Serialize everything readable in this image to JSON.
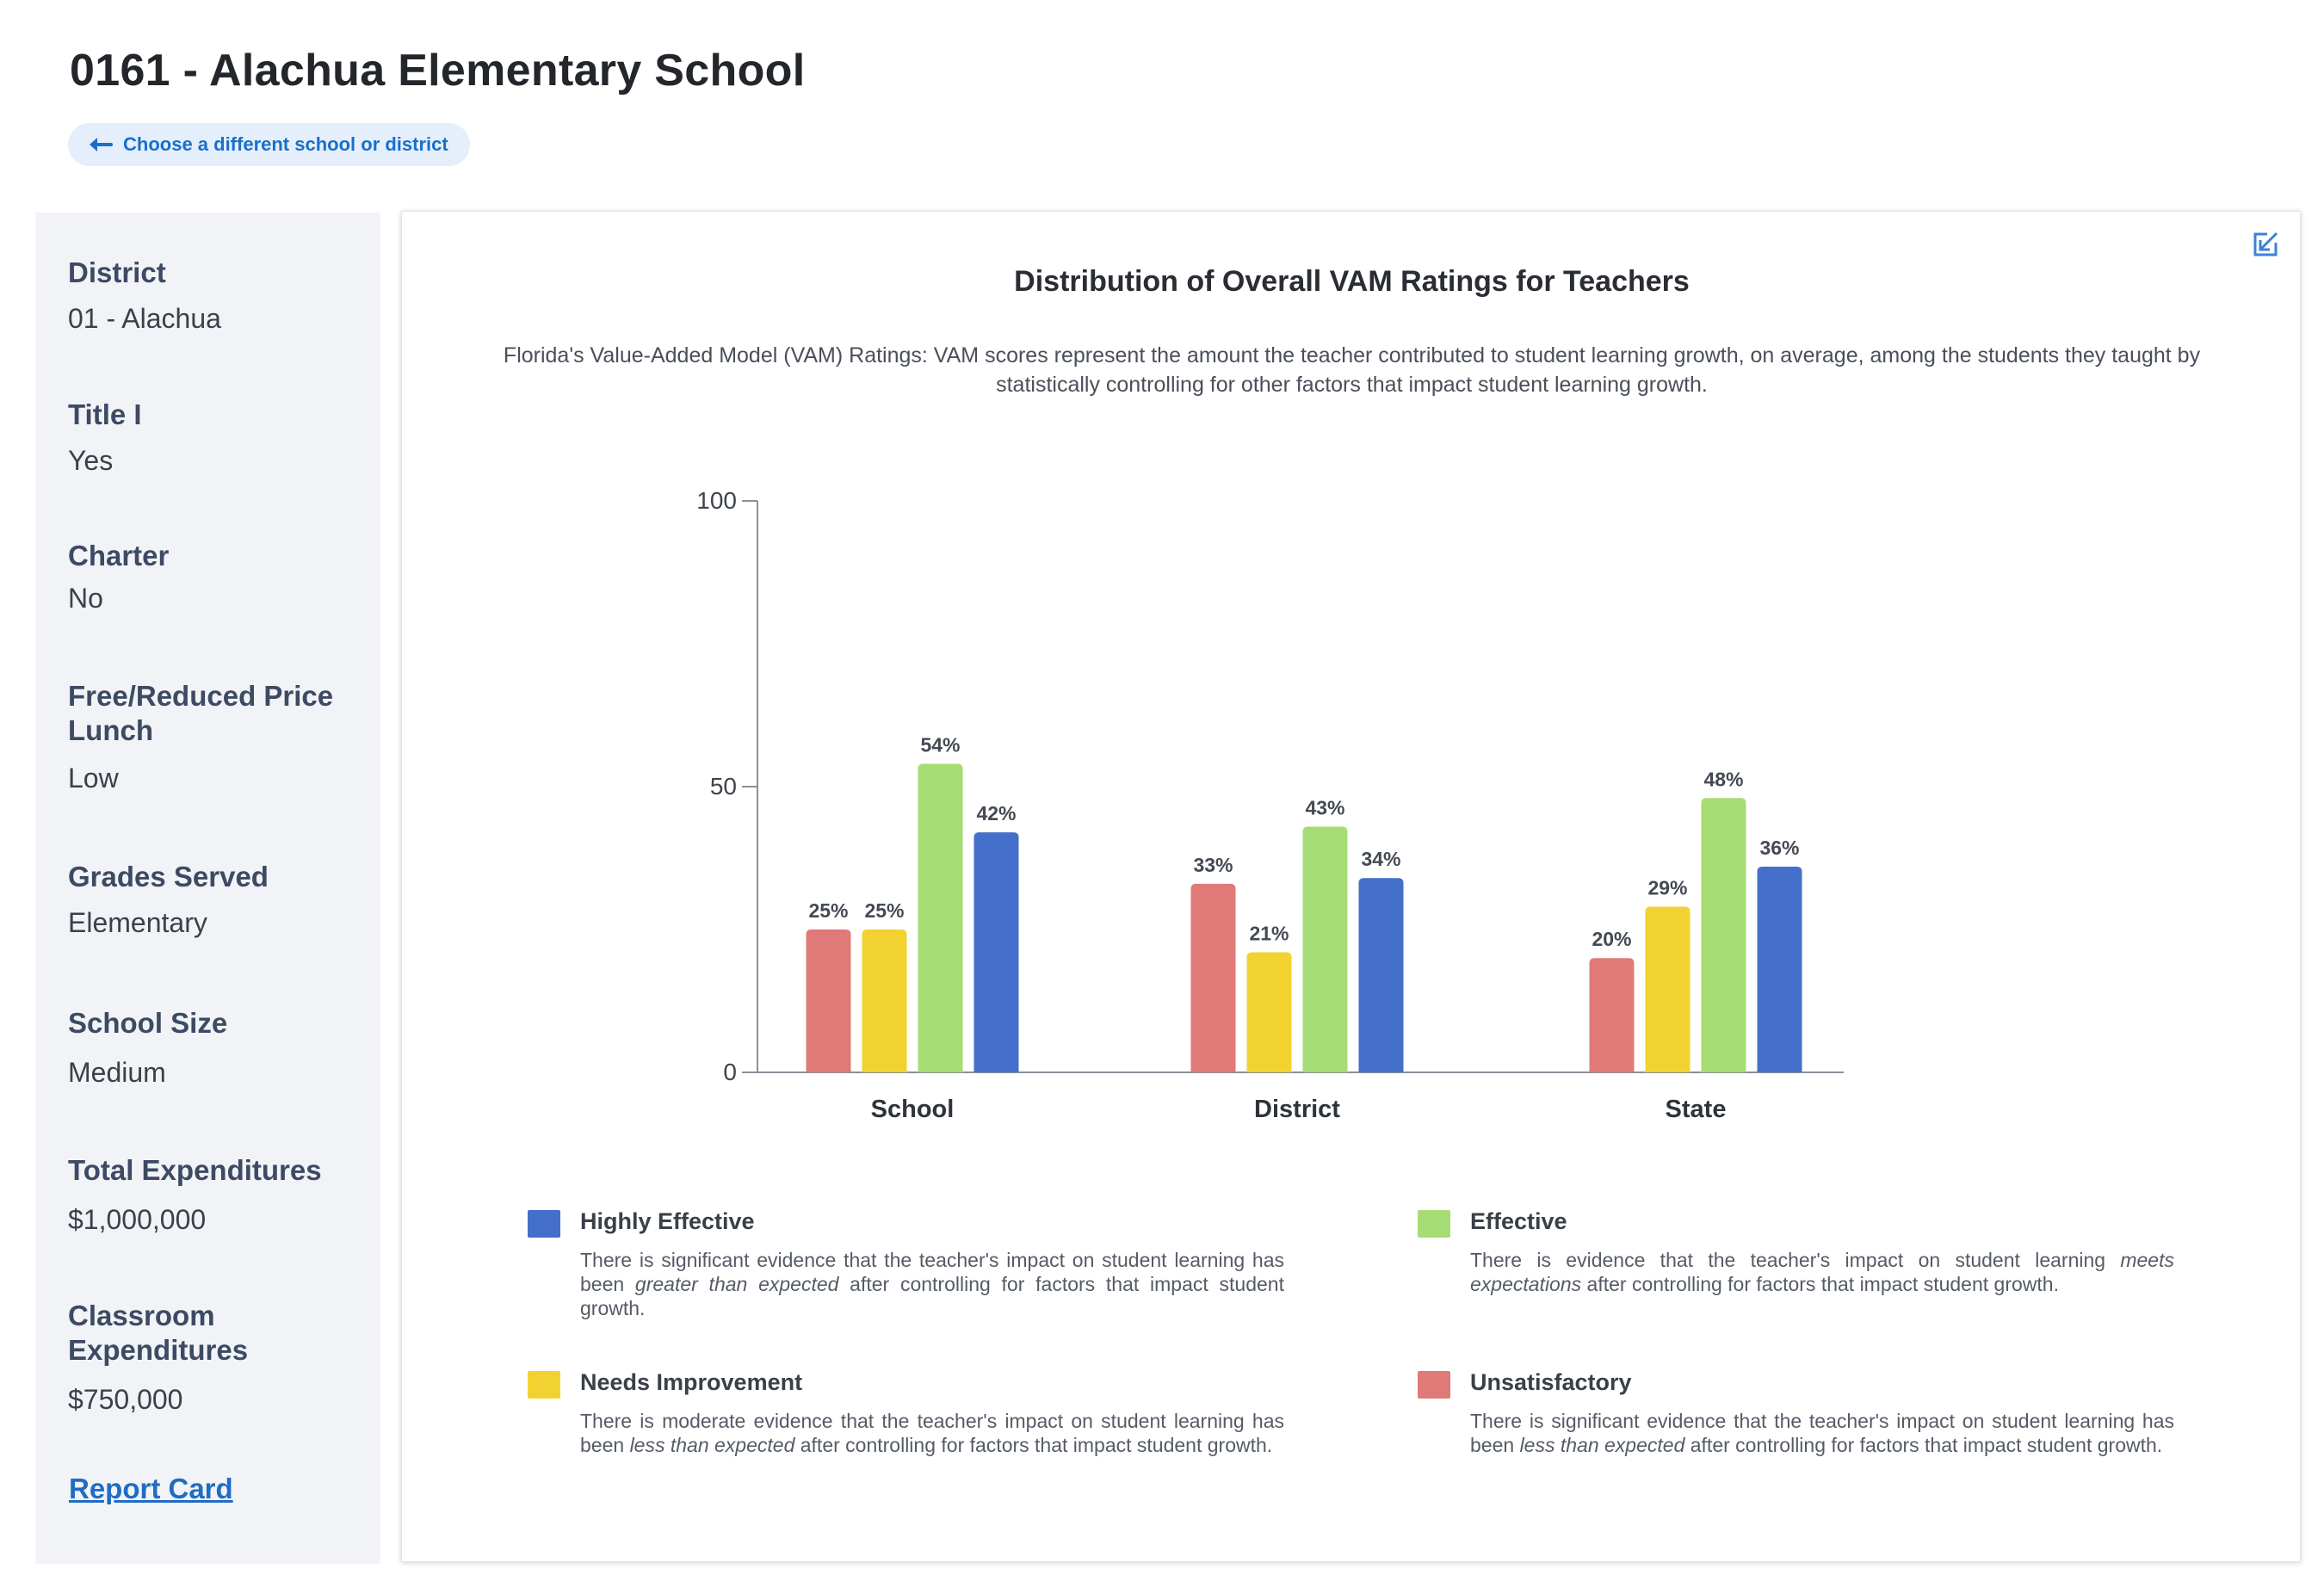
{
  "header": {
    "title": "0161 - Alachua Elementary School",
    "back_label": "Choose a different school or district"
  },
  "sidebar": {
    "fields": [
      {
        "label": "District",
        "value": "01 - Alachua"
      },
      {
        "label": "Title I",
        "value": "Yes"
      },
      {
        "label": "Charter",
        "value": "No"
      },
      {
        "label": "Free/Reduced Price Lunch",
        "value": "Low"
      },
      {
        "label": "Grades Served",
        "value": "Elementary"
      },
      {
        "label": "School Size",
        "value": "Medium"
      },
      {
        "label": "Total Expenditures",
        "value": "$1,000,000"
      },
      {
        "label": "Classroom Expenditures",
        "value": "$750,000"
      }
    ],
    "report_card_label": "Report Card"
  },
  "chart_data": {
    "type": "bar",
    "title": "Distribution of Overall VAM Ratings for Teachers",
    "subtitle": "Florida's Value-Added Model (VAM) Ratings: VAM scores represent the amount the teacher contributed to student learning growth, on average, among the students they taught by statistically controlling for other factors that impact student learning growth.",
    "categories": [
      "School",
      "District",
      "State"
    ],
    "ylim": [
      0,
      100
    ],
    "yticks": [
      0,
      50,
      100
    ],
    "grid": false,
    "series": [
      {
        "name": "Unsatisfactory",
        "color": "#e07a78",
        "values": [
          25,
          33,
          20
        ],
        "labels": [
          "25%",
          "33%",
          "20%"
        ]
      },
      {
        "name": "Needs Improvement",
        "color": "#f2d230",
        "values": [
          25,
          21,
          29
        ],
        "labels": [
          "25%",
          "21%",
          "29%"
        ]
      },
      {
        "name": "Effective",
        "color": "#a6dc74",
        "values": [
          54,
          43,
          48
        ],
        "labels": [
          "54%",
          "43%",
          "48%"
        ]
      },
      {
        "name": "Highly Effective",
        "color": "#446fca",
        "values": [
          42,
          34,
          36
        ],
        "labels": [
          "42%",
          "34%",
          "36%"
        ]
      }
    ],
    "legend_placement": "bottom",
    "legend": [
      {
        "name": "Highly Effective",
        "color": "#446fca",
        "desc_pre": "There is significant evidence that the teacher's impact on student learning has been ",
        "desc_em": "greater than expected",
        "desc_post": " after controlling for factors that impact student growth."
      },
      {
        "name": "Effective",
        "color": "#a6dc74",
        "desc_pre": "There is evidence that the teacher's impact on student learning ",
        "desc_em": "meets expectations",
        "desc_post": " after controlling for factors that impact student growth."
      },
      {
        "name": "Needs Improvement",
        "color": "#f2d230",
        "desc_pre": "There is moderate evidence that the teacher's impact on student learning has been ",
        "desc_em": "less than expected",
        "desc_post": " after controlling for factors that impact student growth."
      },
      {
        "name": "Unsatisfactory",
        "color": "#e07a78",
        "desc_pre": "There is significant evidence that the teacher's impact on student learning has been ",
        "desc_em": "less than expected",
        "desc_post": " after controlling for factors that impact student growth."
      }
    ]
  },
  "colors": {
    "accent": "#1a6fc9",
    "sidebar_bg": "#f1f3f7",
    "pill_bg": "#e4effb"
  },
  "icons": {
    "back": "arrow-left-icon",
    "expand": "expand-icon"
  }
}
